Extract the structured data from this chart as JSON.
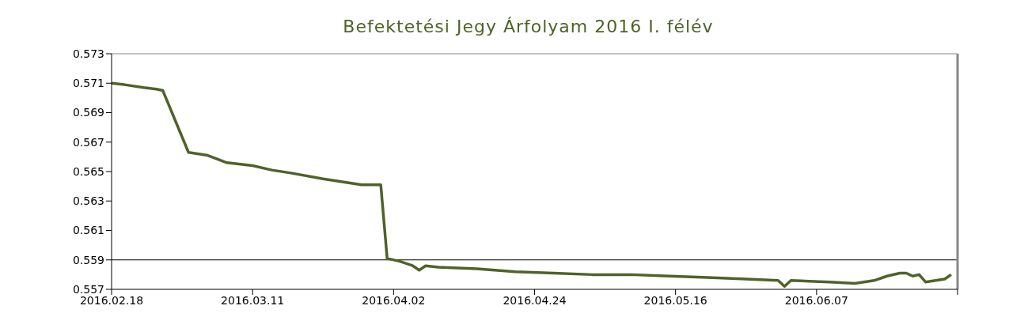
{
  "chart_data": {
    "type": "line",
    "title": "Befektetési Jegy Árfolyam 2016 I. félév",
    "x": [
      "2016-02-18",
      "2016-02-20",
      "2016-02-23",
      "2016-02-25",
      "2016-02-26",
      "2016-03-01",
      "2016-03-04",
      "2016-03-07",
      "2016-03-11",
      "2016-03-14",
      "2016-03-17",
      "2016-03-22",
      "2016-03-25",
      "2016-03-28",
      "2016-03-31",
      "2016-04-01",
      "2016-04-03",
      "2016-04-05",
      "2016-04-06",
      "2016-04-07",
      "2016-04-09",
      "2016-04-15",
      "2016-04-21",
      "2016-04-27",
      "2016-05-03",
      "2016-05-09",
      "2016-05-15",
      "2016-05-21",
      "2016-05-27",
      "2016-06-01",
      "2016-06-02",
      "2016-06-03",
      "2016-06-09",
      "2016-06-13",
      "2016-06-16",
      "2016-06-18",
      "2016-06-20",
      "2016-06-21",
      "2016-06-22",
      "2016-06-23",
      "2016-06-24",
      "2016-06-27",
      "2016-06-28"
    ],
    "series": [
      {
        "color": "#4f6228",
        "values": [
          0.571,
          0.5709,
          0.5707,
          0.5706,
          0.5705,
          0.5663,
          0.5661,
          0.5656,
          0.5654,
          0.5651,
          0.5649,
          0.5645,
          0.5643,
          0.5641,
          0.5641,
          0.5591,
          0.5589,
          0.5586,
          0.5583,
          0.5586,
          0.5585,
          0.5584,
          0.5582,
          0.5581,
          0.558,
          0.558,
          0.5579,
          0.5578,
          0.5577,
          0.5576,
          0.5572,
          0.5576,
          0.5575,
          0.5574,
          0.5576,
          0.5579,
          0.5581,
          0.5581,
          0.5579,
          0.558,
          0.5575,
          0.5577,
          0.558
        ]
      }
    ],
    "xlim": [
      "2016-02-18",
      "2016-06-29"
    ],
    "xticks": [
      {
        "value": "2016-02-18",
        "label": "2016.02.18"
      },
      {
        "value": "2016-03-11",
        "label": "2016.03.11"
      },
      {
        "value": "2016-04-02",
        "label": "2016.04.02"
      },
      {
        "value": "2016-04-24",
        "label": "2016.04.24"
      },
      {
        "value": "2016-05-16",
        "label": "2016.05.16"
      },
      {
        "value": "2016-06-07",
        "label": "2016.06.07"
      },
      {
        "value": "2016-06-29",
        "label": null
      }
    ],
    "ylim": [
      0.557,
      0.573
    ],
    "yticks": [
      0.557,
      0.559,
      0.561,
      0.563,
      0.565,
      0.567,
      0.569,
      0.571,
      0.573
    ],
    "ref_lines": [
      {
        "axis": "y",
        "value": 0.559,
        "color": "#000000"
      }
    ],
    "grid": false,
    "legend": false,
    "marker": "none",
    "line_style": "solid"
  }
}
